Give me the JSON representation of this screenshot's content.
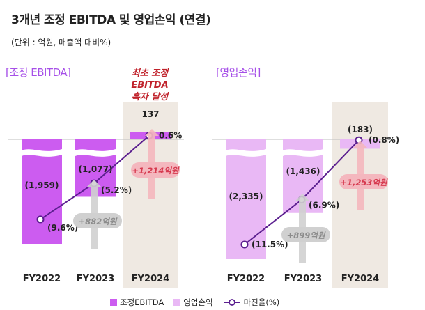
{
  "header": {
    "title": "3개년 조정 EBITDA 및 영업손익 (연결)",
    "unit": "(단위 : 억원, 매출액 대비%)"
  },
  "callout": {
    "line1": "최초 조정 EBITDA",
    "line2": "흑자 달성"
  },
  "colors": {
    "ebitda": "#cc5cf0",
    "op": "#e9b8f5",
    "margin_line": "#5b1f8f",
    "highlight_bg": "#efe9e2",
    "title_purple": "#a64fe8",
    "delta_red": "#d63a4f",
    "delta_gray": "#8c8c8c"
  },
  "legend": {
    "ebitda": "조정EBITDA",
    "op": "영업손익",
    "margin": "마진율(%)"
  },
  "chart_data": [
    {
      "type": "bar",
      "title": "[조정 EBITDA]",
      "categories": [
        "FY2022",
        "FY2023",
        "FY2024"
      ],
      "series": [
        {
          "name": "조정EBITDA",
          "values": [
            -1959,
            -1077,
            137
          ]
        },
        {
          "name": "마진율(%)",
          "values": [
            -9.6,
            -5.2,
            0.6
          ]
        }
      ],
      "value_labels": [
        "(1,959)",
        "(1,077)",
        "137"
      ],
      "margin_labels": [
        "(9.6%)",
        "(5.2%)",
        "0.6%"
      ],
      "deltas": [
        {
          "label": "+882억원",
          "style": "gray"
        },
        {
          "label": "+1,214억원",
          "style": "red"
        }
      ],
      "highlight_category": "FY2024"
    },
    {
      "type": "bar",
      "title": "[영업손익]",
      "categories": [
        "FY2022",
        "FY2023",
        "FY2024"
      ],
      "series": [
        {
          "name": "영업손익",
          "values": [
            -2335,
            -1436,
            -183
          ]
        },
        {
          "name": "마진율(%)",
          "values": [
            -11.5,
            -6.9,
            -0.8
          ]
        }
      ],
      "value_labels": [
        "(2,335)",
        "(1,436)",
        "(183)"
      ],
      "margin_labels": [
        "(11.5%)",
        "(6.9%)",
        "(0.8%)"
      ],
      "deltas": [
        {
          "label": "+899억원",
          "style": "gray"
        },
        {
          "label": "+1,253억원",
          "style": "red"
        }
      ],
      "highlight_category": "FY2024"
    }
  ]
}
